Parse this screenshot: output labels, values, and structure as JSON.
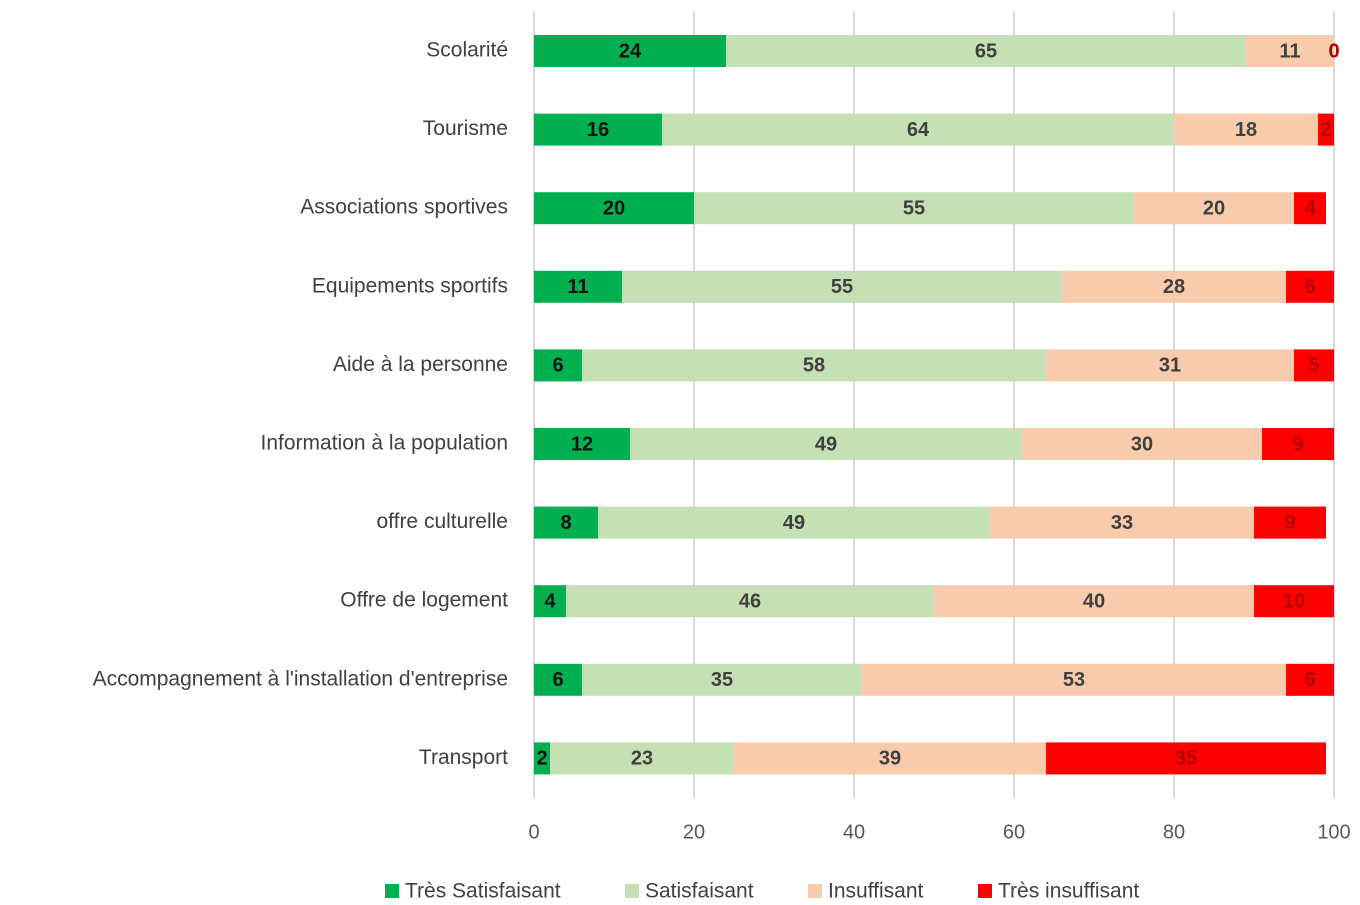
{
  "chart_data": {
    "type": "stacked_bar_horizontal",
    "categories": [
      "Scolarité",
      "Tourisme",
      "Associations sportives",
      "Equipements sportifs",
      "Aide à la personne",
      "Information à la population",
      "offre culturelle",
      "Offre de logement",
      "Accompagnement à l'installation d'entreprise",
      "Transport"
    ],
    "series": [
      {
        "name": "Très Satisfaisant",
        "color": "#00b050",
        "label_color": "#111111",
        "values": [
          24,
          16,
          20,
          11,
          6,
          12,
          8,
          4,
          6,
          2
        ]
      },
      {
        "name": "Satisfaisant",
        "color": "#c5e0b4",
        "label_color": "#404040",
        "values": [
          65,
          64,
          55,
          55,
          58,
          49,
          49,
          46,
          35,
          23
        ]
      },
      {
        "name": "Insuffisant",
        "color": "#f8cbad",
        "label_color": "#404040",
        "values": [
          11,
          18,
          20,
          28,
          31,
          30,
          33,
          40,
          53,
          39
        ]
      },
      {
        "name": "Très insuffisant",
        "color": "#ff0000",
        "label_color": "#b00000",
        "values": [
          0,
          2,
          4,
          6,
          5,
          9,
          9,
          10,
          6,
          35
        ]
      }
    ],
    "xlim": [
      0,
      100
    ],
    "xticks": [
      0,
      20,
      40,
      60,
      80,
      100
    ],
    "grid": true,
    "legend": "bottom"
  }
}
